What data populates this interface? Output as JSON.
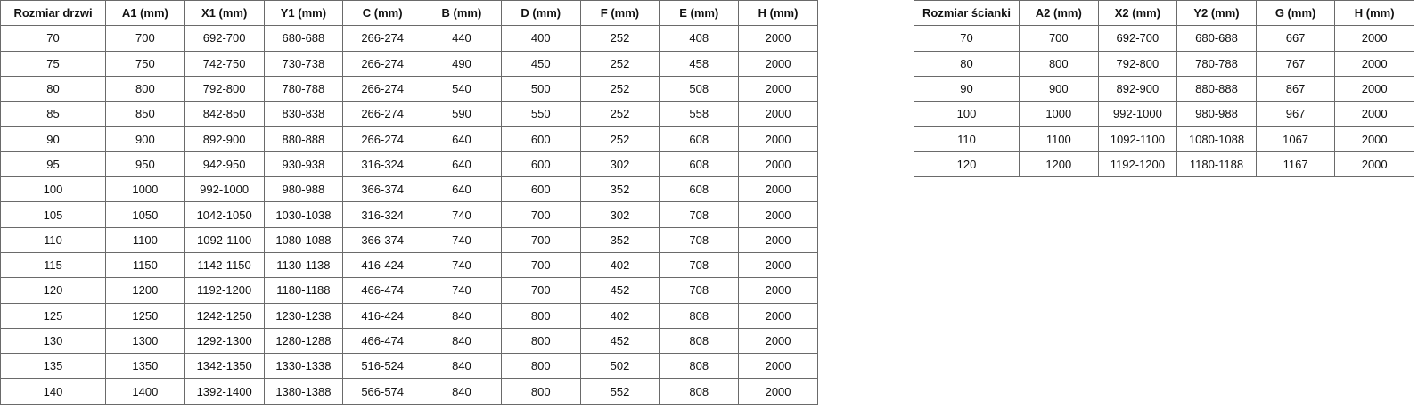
{
  "doors_table": {
    "headers": [
      "Rozmiar drzwi",
      "A1 (mm)",
      "X1 (mm)",
      "Y1 (mm)",
      "C (mm)",
      "B (mm)",
      "D (mm)",
      "F (mm)",
      "E (mm)",
      "H (mm)"
    ],
    "rows": [
      [
        "70",
        "700",
        "692-700",
        "680-688",
        "266-274",
        "440",
        "400",
        "252",
        "408",
        "2000"
      ],
      [
        "75",
        "750",
        "742-750",
        "730-738",
        "266-274",
        "490",
        "450",
        "252",
        "458",
        "2000"
      ],
      [
        "80",
        "800",
        "792-800",
        "780-788",
        "266-274",
        "540",
        "500",
        "252",
        "508",
        "2000"
      ],
      [
        "85",
        "850",
        "842-850",
        "830-838",
        "266-274",
        "590",
        "550",
        "252",
        "558",
        "2000"
      ],
      [
        "90",
        "900",
        "892-900",
        "880-888",
        "266-274",
        "640",
        "600",
        "252",
        "608",
        "2000"
      ],
      [
        "95",
        "950",
        "942-950",
        "930-938",
        "316-324",
        "640",
        "600",
        "302",
        "608",
        "2000"
      ],
      [
        "100",
        "1000",
        "992-1000",
        "980-988",
        "366-374",
        "640",
        "600",
        "352",
        "608",
        "2000"
      ],
      [
        "105",
        "1050",
        "1042-1050",
        "1030-1038",
        "316-324",
        "740",
        "700",
        "302",
        "708",
        "2000"
      ],
      [
        "110",
        "1100",
        "1092-1100",
        "1080-1088",
        "366-374",
        "740",
        "700",
        "352",
        "708",
        "2000"
      ],
      [
        "115",
        "1150",
        "1142-1150",
        "1130-1138",
        "416-424",
        "740",
        "700",
        "402",
        "708",
        "2000"
      ],
      [
        "120",
        "1200",
        "1192-1200",
        "1180-1188",
        "466-474",
        "740",
        "700",
        "452",
        "708",
        "2000"
      ],
      [
        "125",
        "1250",
        "1242-1250",
        "1230-1238",
        "416-424",
        "840",
        "800",
        "402",
        "808",
        "2000"
      ],
      [
        "130",
        "1300",
        "1292-1300",
        "1280-1288",
        "466-474",
        "840",
        "800",
        "452",
        "808",
        "2000"
      ],
      [
        "135",
        "1350",
        "1342-1350",
        "1330-1338",
        "516-524",
        "840",
        "800",
        "502",
        "808",
        "2000"
      ],
      [
        "140",
        "1400",
        "1392-1400",
        "1380-1388",
        "566-574",
        "840",
        "800",
        "552",
        "808",
        "2000"
      ]
    ]
  },
  "wall_table": {
    "headers": [
      "Rozmiar ścianki",
      "A2 (mm)",
      "X2 (mm)",
      "Y2 (mm)",
      "G (mm)",
      "H (mm)"
    ],
    "rows": [
      [
        "70",
        "700",
        "692-700",
        "680-688",
        "667",
        "2000"
      ],
      [
        "80",
        "800",
        "792-800",
        "780-788",
        "767",
        "2000"
      ],
      [
        "90",
        "900",
        "892-900",
        "880-888",
        "867",
        "2000"
      ],
      [
        "100",
        "1000",
        "992-1000",
        "980-988",
        "967",
        "2000"
      ],
      [
        "110",
        "1100",
        "1092-1100",
        "1080-1088",
        "1067",
        "2000"
      ],
      [
        "120",
        "1200",
        "1192-1200",
        "1180-1188",
        "1167",
        "2000"
      ]
    ]
  }
}
